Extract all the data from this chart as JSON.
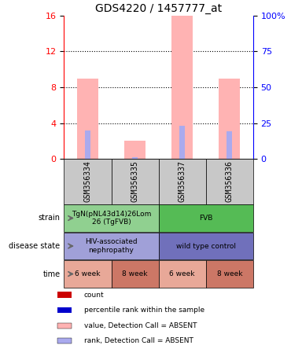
{
  "title": "GDS4220 / 1457777_at",
  "samples": [
    "GSM356334",
    "GSM356335",
    "GSM356337",
    "GSM356336"
  ],
  "bar_values": [
    9.0,
    2.0,
    16.0,
    9.0
  ],
  "rank_values": [
    3.2,
    0.2,
    3.7,
    3.1
  ],
  "ylim_left": [
    0,
    16
  ],
  "ylim_right": [
    0,
    100
  ],
  "yticks_left": [
    0,
    4,
    8,
    12,
    16
  ],
  "yticks_right": [
    0,
    25,
    50,
    75,
    100
  ],
  "bar_color": "#ffb3b3",
  "rank_color": "#aaaaee",
  "strain_row": [
    {
      "label": "TgN(pNL43d14)26Lom\n26 (TgFVB)",
      "color": "#90d090",
      "span": 2
    },
    {
      "label": "FVB",
      "color": "#55bb55",
      "span": 2
    }
  ],
  "disease_row": [
    {
      "label": "HIV-associated\nnephropathy",
      "color": "#a0a0d8",
      "span": 2
    },
    {
      "label": "wild type control",
      "color": "#7070bb",
      "span": 2
    }
  ],
  "time_row": [
    {
      "label": "6 week",
      "color": "#e8a898",
      "span": 1
    },
    {
      "label": "8 week",
      "color": "#cc7766",
      "span": 1
    },
    {
      "label": "6 week",
      "color": "#e8a898",
      "span": 1
    },
    {
      "label": "8 week",
      "color": "#cc7766",
      "span": 1
    }
  ],
  "row_labels": [
    "strain",
    "disease state",
    "time"
  ],
  "legend_items": [
    {
      "label": "count",
      "color": "#cc0000"
    },
    {
      "label": "percentile rank within the sample",
      "color": "#0000cc"
    },
    {
      "label": "value, Detection Call = ABSENT",
      "color": "#ffb3b3"
    },
    {
      "label": "rank, Detection Call = ABSENT",
      "color": "#aaaaee"
    }
  ],
  "gsm_bg_color": "#c8c8c8"
}
